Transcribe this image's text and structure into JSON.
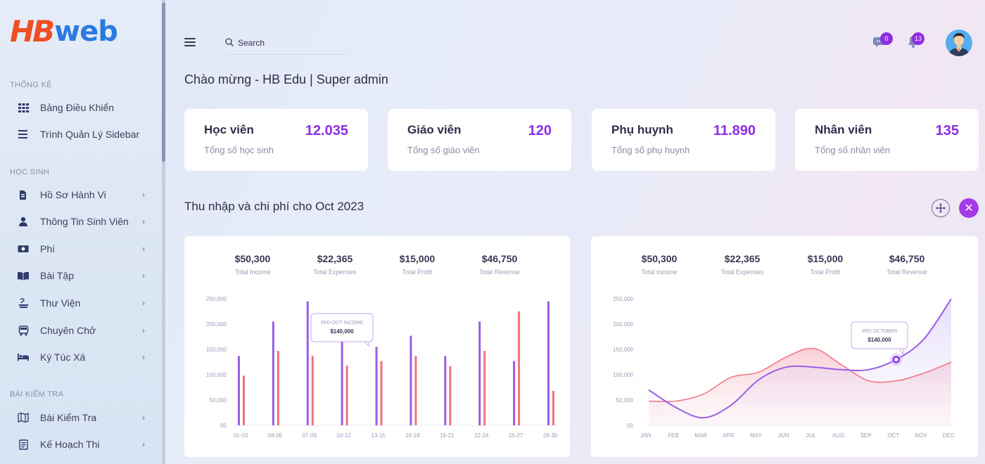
{
  "brand": {
    "part1": "HB",
    "part2": "web",
    "color1": "#f04e23",
    "color2": "#2a7ae2"
  },
  "sidebar": {
    "sections": [
      {
        "title": "THỐNG KÊ",
        "items": [
          {
            "label": "Bảng Điều Khiển",
            "icon": "grid-icon",
            "chevron": false
          },
          {
            "label": "Trình Quản Lý Sidebar",
            "icon": "list-icon",
            "chevron": false
          }
        ]
      },
      {
        "title": "HỌC SINH",
        "items": [
          {
            "label": "Hồ Sơ Hành Vi",
            "icon": "document-icon",
            "chevron": true
          },
          {
            "label": "Thông Tin Sinh Viên",
            "icon": "user-icon",
            "chevron": true
          },
          {
            "label": "Phí",
            "icon": "money-icon",
            "chevron": true
          },
          {
            "label": "Bài Tập",
            "icon": "book-icon",
            "chevron": true
          },
          {
            "label": "Thư Viện",
            "icon": "library-icon",
            "chevron": true
          },
          {
            "label": "Chuyên Chở",
            "icon": "bus-icon",
            "chevron": true
          },
          {
            "label": "Ký Túc Xá",
            "icon": "bed-icon",
            "chevron": true
          }
        ]
      },
      {
        "title": "BÀI KIỂM TRA",
        "items": [
          {
            "label": "Bài Kiểm Tra",
            "icon": "map-icon",
            "chevron": true
          },
          {
            "label": "Kế Hoạch Thi",
            "icon": "plan-icon",
            "chevron": true
          }
        ]
      }
    ]
  },
  "topbar": {
    "search_placeholder": "Search",
    "messages_count": "0",
    "notifications_count": "13"
  },
  "welcome": "Chào mừng - HB Edu | Super admin",
  "cards": [
    {
      "title": "Học viên",
      "value": "12.035",
      "subtitle": "Tổng số học sinh"
    },
    {
      "title": "Giáo viên",
      "value": "120",
      "subtitle": "Tổng số giáo viên"
    },
    {
      "title": "Phụ huynh",
      "value": "11.890",
      "subtitle": "Tổng số phụ huynh"
    },
    {
      "title": "Nhân viên",
      "value": "135",
      "subtitle": "Tổng số nhân viên"
    }
  ],
  "section_title": "Thu nhập và chi phí cho Oct 2023",
  "colors": {
    "accent": "#8e2de2",
    "series_income": "#9b5de5",
    "series_expense": "#f0727e"
  },
  "chart_data": [
    {
      "type": "bar",
      "summary": [
        {
          "value": "$50,300",
          "label": "Total Income"
        },
        {
          "value": "$22,365",
          "label": "Total Expenses"
        },
        {
          "value": "$15,000",
          "label": "Total Profit"
        },
        {
          "value": "$46,750",
          "label": "Total Revenue"
        }
      ],
      "categories": [
        "01-03",
        "04-06",
        "07-09",
        "10-12",
        "13-15",
        "16-18",
        "19-21",
        "22-24",
        "25-27",
        "28-30"
      ],
      "y_ticks": [
        "250,000",
        "200,000",
        "150,000",
        "100,000",
        "50,000",
        "00"
      ],
      "ylim": [
        0,
        250000
      ],
      "series": [
        {
          "values": [
            137000,
            205000,
            245000,
            185000,
            155000,
            177000,
            137000,
            205000,
            127000,
            245000
          ]
        },
        {
          "values": [
            98000,
            147000,
            137000,
            118000,
            127000,
            137000,
            117000,
            147000,
            225000,
            68000
          ]
        }
      ],
      "tooltip": {
        "title": "3RD-OCT INCOME",
        "value": "$140,000"
      }
    },
    {
      "type": "area",
      "summary": [
        {
          "value": "$50,300",
          "label": "Total Income"
        },
        {
          "value": "$22,365",
          "label": "Total Expenses"
        },
        {
          "value": "$15,000",
          "label": "Total Profit"
        },
        {
          "value": "$46,750",
          "label": "Total Revenue"
        }
      ],
      "categories": [
        "JAN",
        "FEB",
        "MAR",
        "APR",
        "MAY",
        "JUN",
        "JUL",
        "AUG",
        "SEP",
        "OCT",
        "NOV",
        "DEC"
      ],
      "y_ticks": [
        "250,000",
        "200,000",
        "150,000",
        "100,000",
        "50,000",
        "00"
      ],
      "ylim": [
        0,
        250000
      ],
      "series": [
        {
          "values": [
            70000,
            35000,
            15000,
            40000,
            90000,
            115000,
            115000,
            110000,
            110000,
            130000,
            170000,
            250000
          ]
        },
        {
          "values": [
            48000,
            48000,
            62000,
            95000,
            105000,
            135000,
            152000,
            120000,
            88000,
            88000,
            103000,
            125000
          ]
        }
      ],
      "tooltip": {
        "title": "3RD OCTOBER",
        "value": "$140,000"
      }
    }
  ]
}
